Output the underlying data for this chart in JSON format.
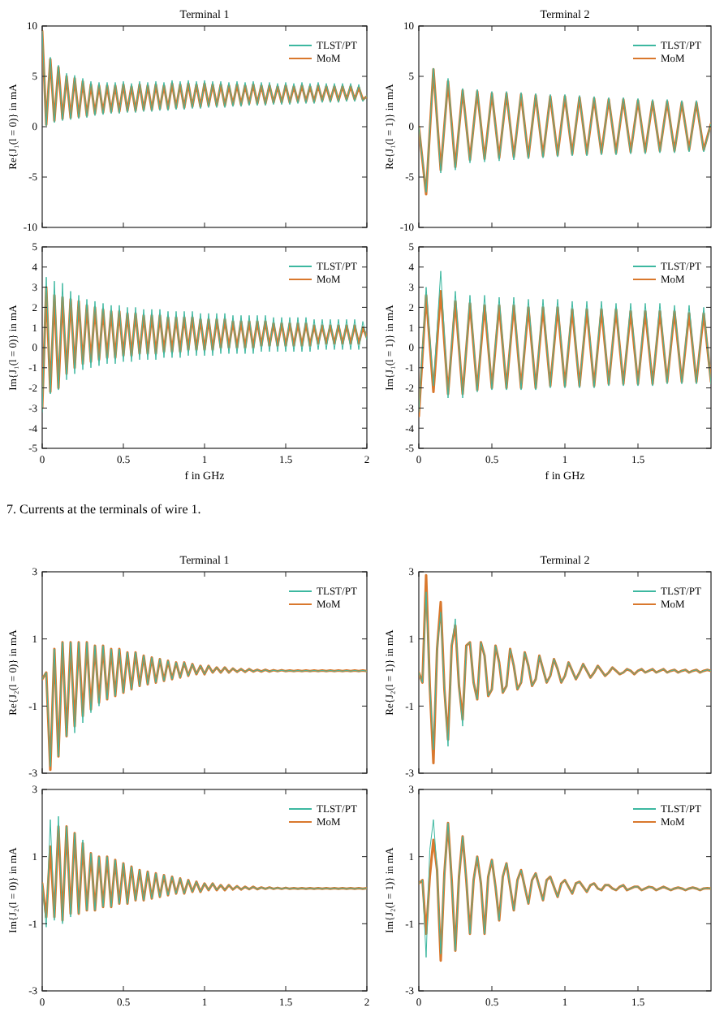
{
  "chart_data": [
    {
      "type": "line",
      "title": "Terminal 1",
      "ylabel": "Re{J₁(l = 0)} in mA",
      "legend": "top right",
      "tick_labels": "y",
      "xlim": [
        0,
        2
      ],
      "xticks": [
        0,
        0.5,
        1,
        1.5,
        2
      ],
      "ylim": [
        -10,
        10
      ],
      "yticks": [
        -10,
        -5,
        0,
        5,
        10
      ],
      "x": [
        0,
        0.025,
        0.05,
        0.075,
        0.1,
        0.125,
        0.15,
        0.175,
        0.2,
        0.225,
        0.25,
        0.275,
        0.3,
        0.325,
        0.35,
        0.375,
        0.4,
        0.425,
        0.45,
        0.475,
        0.5,
        0.525,
        0.55,
        0.575,
        0.6,
        0.625,
        0.65,
        0.675,
        0.7,
        0.725,
        0.75,
        0.775,
        0.8,
        0.825,
        0.85,
        0.875,
        0.9,
        0.925,
        0.95,
        0.975,
        1,
        1.025,
        1.05,
        1.075,
        1.1,
        1.125,
        1.15,
        1.175,
        1.2,
        1.225,
        1.25,
        1.275,
        1.3,
        1.325,
        1.35,
        1.375,
        1.4,
        1.425,
        1.45,
        1.475,
        1.5,
        1.525,
        1.55,
        1.575,
        1.6,
        1.625,
        1.65,
        1.675,
        1.7,
        1.725,
        1.75,
        1.775,
        1.8,
        1.825,
        1.85,
        1.875,
        1.9,
        1.925,
        1.95,
        1.975,
        2
      ],
      "series": [
        {
          "name": "TLST/PT",
          "color": "#3db8a0",
          "values": [
            9.5,
            0.1,
            6.9,
            0.4,
            6.1,
            0.6,
            5.3,
            0.7,
            5.1,
            0.8,
            4.8,
            0.9,
            4.5,
            1.1,
            4.4,
            1.2,
            4.4,
            1.3,
            4.4,
            1.3,
            4.5,
            1.4,
            4.3,
            1.4,
            4.5,
            1.5,
            4.4,
            1.5,
            4.5,
            1.6,
            4.4,
            1.6,
            4.6,
            1.7,
            4.5,
            1.7,
            4.6,
            1.8,
            4.5,
            1.8,
            4.6,
            1.9,
            4.5,
            1.9,
            4.5,
            1.9,
            4.4,
            2.0,
            4.5,
            2.0,
            4.4,
            2.1,
            4.5,
            2.1,
            4.4,
            2.1,
            4.4,
            2.2,
            4.3,
            2.2,
            4.4,
            2.2,
            4.3,
            2.3,
            4.4,
            2.3,
            4.3,
            2.3,
            4.4,
            2.4,
            4.3,
            2.4,
            4.3,
            2.4,
            4.3,
            2.5,
            4.3,
            2.5,
            4.2,
            2.5,
            3.1
          ]
        },
        {
          "name": "MoM",
          "color": "#d9782d",
          "values": [
            9.5,
            0.2,
            6.7,
            0.6,
            5.9,
            0.8,
            5.0,
            0.9,
            4.8,
            1.0,
            4.5,
            1.1,
            4.2,
            1.3,
            4.1,
            1.4,
            4.1,
            1.5,
            4.1,
            1.5,
            4.2,
            1.6,
            4.0,
            1.6,
            4.2,
            1.7,
            4.1,
            1.7,
            4.2,
            1.8,
            4.1,
            1.8,
            4.3,
            1.9,
            4.2,
            1.9,
            4.3,
            2.0,
            4.2,
            2.0,
            4.3,
            2.1,
            4.2,
            2.1,
            4.2,
            2.1,
            4.1,
            2.2,
            4.2,
            2.2,
            4.1,
            2.3,
            4.2,
            2.3,
            4.1,
            2.3,
            4.1,
            2.4,
            4.0,
            2.4,
            4.1,
            2.4,
            4.0,
            2.5,
            4.1,
            2.5,
            4.0,
            2.5,
            4.1,
            2.6,
            4.0,
            2.6,
            4.0,
            2.6,
            4.0,
            2.7,
            4.0,
            2.7,
            3.9,
            2.7,
            3.0
          ]
        }
      ]
    },
    {
      "type": "line",
      "title": "Terminal 2",
      "ylabel": "Re{J₁(l = 1)} in mA",
      "legend": "top right",
      "tick_labels": "y",
      "xlim": [
        0,
        2
      ],
      "xticks": [
        0,
        0.5,
        1,
        1.5
      ],
      "ylim": [
        -10,
        10
      ],
      "yticks": [
        -10,
        -5,
        0,
        5,
        10
      ],
      "x": [
        0,
        0.05,
        0.1,
        0.15,
        0.2,
        0.25,
        0.3,
        0.35,
        0.4,
        0.45,
        0.5,
        0.55,
        0.6,
        0.65,
        0.7,
        0.75,
        0.8,
        0.85,
        0.9,
        0.95,
        1,
        1.05,
        1.1,
        1.15,
        1.2,
        1.25,
        1.3,
        1.35,
        1.4,
        1.45,
        1.5,
        1.55,
        1.6,
        1.65,
        1.7,
        1.75,
        1.8,
        1.85,
        1.9,
        1.95,
        2
      ],
      "series": [
        {
          "name": "TLST/PT",
          "color": "#3db8a0",
          "values": [
            0,
            -6.5,
            5.8,
            -4.6,
            4.8,
            -4.3,
            3.8,
            -3.6,
            3.7,
            -3.5,
            3.5,
            -3.4,
            3.5,
            -3.3,
            3.4,
            -3.2,
            3.3,
            -3.1,
            3.2,
            -3.0,
            3.2,
            -2.9,
            3.1,
            -2.9,
            3.0,
            -2.8,
            2.9,
            -2.8,
            2.9,
            -2.7,
            2.8,
            -2.7,
            2.7,
            -2.6,
            2.7,
            -2.6,
            2.6,
            -2.5,
            2.6,
            -2.5,
            0.3
          ]
        },
        {
          "name": "MoM",
          "color": "#d9782d",
          "values": [
            0,
            -6.7,
            5.7,
            -4.3,
            4.5,
            -4.0,
            3.6,
            -3.3,
            3.5,
            -3.2,
            3.3,
            -3.1,
            3.3,
            -3.0,
            3.2,
            -3.0,
            3.1,
            -2.9,
            3.0,
            -2.8,
            3.0,
            -2.7,
            2.9,
            -2.7,
            2.8,
            -2.6,
            2.7,
            -2.6,
            2.7,
            -2.5,
            2.6,
            -2.5,
            2.5,
            -2.4,
            2.5,
            -2.4,
            2.4,
            -2.3,
            2.4,
            -2.3,
            0.3
          ]
        }
      ]
    },
    {
      "type": "line",
      "xlabel": "f in GHz",
      "ylabel": "Im{J₁(l = 0)} in mA",
      "legend": "top right",
      "xlim": [
        0,
        2
      ],
      "xticks": [
        0,
        0.5,
        1,
        1.5,
        2
      ],
      "ylim": [
        -5,
        5
      ],
      "yticks": [
        -5,
        -4,
        -3,
        -2,
        -1,
        0,
        1,
        2,
        3,
        4,
        5
      ],
      "annotations": [
        "7. Currents at the terminals of wire 1."
      ],
      "x": [
        0,
        0.025,
        0.05,
        0.075,
        0.1,
        0.125,
        0.15,
        0.175,
        0.2,
        0.225,
        0.25,
        0.275,
        0.3,
        0.325,
        0.35,
        0.375,
        0.4,
        0.425,
        0.45,
        0.475,
        0.5,
        0.525,
        0.55,
        0.575,
        0.6,
        0.625,
        0.65,
        0.675,
        0.7,
        0.725,
        0.75,
        0.775,
        0.8,
        0.825,
        0.85,
        0.875,
        0.9,
        0.925,
        0.95,
        0.975,
        1,
        1.025,
        1.05,
        1.075,
        1.1,
        1.125,
        1.15,
        1.175,
        1.2,
        1.225,
        1.25,
        1.275,
        1.3,
        1.325,
        1.35,
        1.375,
        1.4,
        1.425,
        1.45,
        1.475,
        1.5,
        1.525,
        1.55,
        1.575,
        1.6,
        1.625,
        1.65,
        1.675,
        1.7,
        1.725,
        1.75,
        1.775,
        1.8,
        1.825,
        1.85,
        1.875,
        1.9,
        1.925,
        1.95,
        1.975,
        2
      ],
      "series": [
        {
          "name": "TLST/PT",
          "color": "#3db8a0",
          "values": [
            -3.2,
            3.5,
            -2.3,
            3.3,
            -2.1,
            3.2,
            -1.6,
            2.8,
            -1.3,
            2.6,
            -1.1,
            2.4,
            -1.0,
            2.3,
            -0.9,
            2.2,
            -0.8,
            2.1,
            -0.8,
            2.1,
            -0.7,
            2.0,
            -0.7,
            2.0,
            -0.6,
            1.9,
            -0.6,
            1.9,
            -0.6,
            1.9,
            -0.5,
            1.8,
            -0.5,
            1.8,
            -0.5,
            1.8,
            -0.4,
            1.8,
            -0.4,
            1.7,
            -0.4,
            1.7,
            -0.4,
            1.7,
            -0.3,
            1.7,
            -0.3,
            1.6,
            -0.3,
            1.6,
            -0.3,
            1.6,
            -0.3,
            1.6,
            -0.2,
            1.6,
            -0.2,
            1.5,
            -0.2,
            1.5,
            -0.2,
            1.5,
            -0.2,
            1.5,
            -0.2,
            1.5,
            -0.2,
            1.4,
            -0.1,
            1.4,
            -0.1,
            1.4,
            -0.1,
            1.4,
            -0.1,
            1.4,
            -0.1,
            1.4,
            -0.1,
            1.3,
            0.4
          ]
        },
        {
          "name": "MoM",
          "color": "#d9782d",
          "values": [
            -3.0,
            3.0,
            -2.2,
            2.6,
            -2.0,
            2.5,
            -1.3,
            2.4,
            -1.0,
            2.3,
            -0.8,
            2.1,
            -0.7,
            2.0,
            -0.6,
            1.9,
            -0.5,
            1.8,
            -0.5,
            1.8,
            -0.4,
            1.7,
            -0.4,
            1.7,
            -0.3,
            1.6,
            -0.3,
            1.6,
            -0.3,
            1.6,
            -0.2,
            1.5,
            -0.2,
            1.5,
            -0.2,
            1.5,
            -0.1,
            1.5,
            -0.1,
            1.4,
            -0.1,
            1.4,
            -0.1,
            1.4,
            0,
            1.4,
            0,
            1.3,
            0,
            1.3,
            0,
            1.3,
            0,
            1.3,
            0.1,
            1.3,
            0.1,
            1.2,
            0.1,
            1.2,
            0.1,
            1.2,
            0.1,
            1.2,
            0.1,
            1.2,
            0.1,
            1.1,
            0.2,
            1.1,
            0.2,
            1.1,
            0.2,
            1.1,
            0.2,
            1.1,
            0.2,
            1.1,
            0.2,
            1.0,
            0.5
          ]
        }
      ]
    },
    {
      "type": "line",
      "xlabel": "f in GHz",
      "ylabel": "Im{J₁(l = 1)} in mA",
      "legend": "top right",
      "xlim": [
        0,
        2
      ],
      "xticks": [
        0,
        0.5,
        1,
        1.5
      ],
      "ylim": [
        -5,
        5
      ],
      "yticks": [
        -5,
        -4,
        -3,
        -2,
        -1,
        0,
        1,
        2,
        3,
        4,
        5
      ],
      "x": [
        0,
        0.05,
        0.1,
        0.15,
        0.2,
        0.25,
        0.3,
        0.35,
        0.4,
        0.45,
        0.5,
        0.55,
        0.6,
        0.65,
        0.7,
        0.75,
        0.8,
        0.85,
        0.9,
        0.95,
        1,
        1.05,
        1.1,
        1.15,
        1.2,
        1.25,
        1.3,
        1.35,
        1.4,
        1.45,
        1.5,
        1.55,
        1.6,
        1.65,
        1.7,
        1.75,
        1.8,
        1.85,
        1.9,
        1.95,
        2
      ],
      "series": [
        {
          "name": "TLST/PT",
          "color": "#3db8a0",
          "values": [
            -3.2,
            3.0,
            -1.9,
            3.8,
            -2.5,
            2.8,
            -2.5,
            2.6,
            -2.2,
            2.6,
            -2.1,
            2.5,
            -2.1,
            2.5,
            -2.1,
            2.4,
            -2.1,
            2.4,
            -2.0,
            2.4,
            -2.0,
            2.3,
            -2.0,
            2.3,
            -2.0,
            2.3,
            -1.9,
            2.2,
            -1.9,
            2.2,
            -1.9,
            2.2,
            -1.9,
            2.2,
            -1.8,
            2.1,
            -1.8,
            2.1,
            -1.8,
            2.0,
            -1.8
          ]
        },
        {
          "name": "MoM",
          "color": "#d9782d",
          "values": [
            -3.4,
            2.6,
            -2.2,
            2.8,
            -2.3,
            2.3,
            -2.3,
            2.2,
            -2.1,
            2.1,
            -2.0,
            2.1,
            -2.0,
            2.1,
            -2.0,
            2.0,
            -2.0,
            2.0,
            -1.9,
            2.0,
            -1.9,
            1.9,
            -1.9,
            1.9,
            -1.9,
            1.9,
            -1.8,
            1.9,
            -1.8,
            1.8,
            -1.8,
            1.8,
            -1.8,
            1.8,
            -1.7,
            1.8,
            -1.7,
            1.7,
            -1.7,
            1.7,
            -1.7
          ]
        }
      ]
    },
    {
      "type": "line",
      "title": "Terminal 1",
      "ylabel": "Re{J₂(l = 0)} in mA",
      "legend": "top right",
      "tick_labels": "y",
      "xlim": [
        0,
        2
      ],
      "xticks": [
        0,
        0.5,
        1,
        1.5,
        2
      ],
      "ylim": [
        -3,
        3
      ],
      "yticks": [
        -3,
        -1,
        1,
        3
      ],
      "x": [
        0,
        0.025,
        0.05,
        0.075,
        0.1,
        0.125,
        0.15,
        0.175,
        0.2,
        0.225,
        0.25,
        0.275,
        0.3,
        0.325,
        0.35,
        0.375,
        0.4,
        0.425,
        0.45,
        0.475,
        0.5,
        0.525,
        0.55,
        0.575,
        0.6,
        0.625,
        0.65,
        0.675,
        0.7,
        0.725,
        0.75,
        0.775,
        0.8,
        0.825,
        0.85,
        0.875,
        0.9,
        0.925,
        0.95,
        0.975,
        1,
        1.025,
        1.05,
        1.075,
        1.1,
        1.125,
        1.15,
        1.175,
        1.2,
        1.225,
        1.25,
        1.275,
        1.3,
        1.325,
        1.35,
        1.375,
        1.4,
        1.425,
        1.45,
        1.475,
        1.5,
        1.525,
        1.55,
        1.575,
        1.6,
        1.625,
        1.65,
        1.675,
        1.7,
        1.725,
        1.75,
        1.775,
        1.8,
        1.825,
        1.85,
        1.875,
        1.9,
        1.925,
        1.95,
        1.975,
        2
      ],
      "series": [
        {
          "name": "TLST/PT",
          "color": "#3db8a0",
          "values": [
            -0.2,
            0,
            -2.8,
            0.7,
            -2.5,
            0.9,
            -1.9,
            0.9,
            -1.8,
            0.9,
            -1.5,
            0.9,
            -1.2,
            0.8,
            -1.0,
            0.8,
            -0.8,
            0.7,
            -0.7,
            0.7,
            -0.6,
            0.6,
            -0.5,
            0.6,
            -0.4,
            0.5,
            -0.35,
            0.45,
            -0.3,
            0.4,
            -0.25,
            0.35,
            -0.2,
            0.3,
            -0.15,
            0.3,
            -0.1,
            0.25,
            -0.05,
            0.2,
            -0.05,
            0.2,
            0,
            0.15,
            0,
            0.15,
            0,
            0.12,
            0.02,
            0.1,
            0.02,
            0.1,
            0.03,
            0.08,
            0.03,
            0.08,
            0.03,
            0.07,
            0.04,
            0.07,
            0.04,
            0.06,
            0.04,
            0.06,
            0.04,
            0.06,
            0.04,
            0.06,
            0.04,
            0.06,
            0.04,
            0.06,
            0.04,
            0.06,
            0.04,
            0.06,
            0.04,
            0.06,
            0.04,
            0.06,
            0.04
          ]
        },
        {
          "name": "MoM",
          "color": "#d9782d",
          "values": [
            -0.2,
            0,
            -2.9,
            0.7,
            -2.5,
            0.9,
            -1.9,
            0.9,
            -1.6,
            0.9,
            -1.3,
            0.9,
            -1.1,
            0.8,
            -0.9,
            0.8,
            -0.8,
            0.7,
            -0.7,
            0.7,
            -0.6,
            0.6,
            -0.5,
            0.6,
            -0.4,
            0.5,
            -0.35,
            0.45,
            -0.3,
            0.4,
            -0.25,
            0.35,
            -0.2,
            0.3,
            -0.15,
            0.3,
            -0.1,
            0.25,
            -0.05,
            0.2,
            -0.05,
            0.2,
            0,
            0.15,
            0,
            0.15,
            0,
            0.12,
            0.02,
            0.1,
            0.02,
            0.1,
            0.03,
            0.08,
            0.03,
            0.08,
            0.03,
            0.07,
            0.04,
            0.07,
            0.04,
            0.06,
            0.04,
            0.06,
            0.04,
            0.06,
            0.04,
            0.06,
            0.04,
            0.06,
            0.04,
            0.06,
            0.04,
            0.06,
            0.04,
            0.06,
            0.04,
            0.06,
            0.04,
            0.06,
            0.04
          ]
        }
      ]
    },
    {
      "type": "line",
      "title": "Terminal 2",
      "ylabel": "Re{J₂(l = 1)} in mA",
      "legend": "top right",
      "tick_labels": "y",
      "xlim": [
        0,
        2
      ],
      "xticks": [
        0,
        0.5,
        1,
        1.5
      ],
      "ylim": [
        -3,
        3
      ],
      "yticks": [
        -3,
        -1,
        1,
        3
      ],
      "x": [
        0,
        0.025,
        0.05,
        0.075,
        0.1,
        0.125,
        0.15,
        0.175,
        0.2,
        0.225,
        0.25,
        0.275,
        0.3,
        0.325,
        0.35,
        0.375,
        0.4,
        0.425,
        0.45,
        0.475,
        0.5,
        0.525,
        0.55,
        0.575,
        0.6,
        0.625,
        0.65,
        0.675,
        0.7,
        0.725,
        0.75,
        0.775,
        0.8,
        0.825,
        0.85,
        0.875,
        0.9,
        0.925,
        0.95,
        0.975,
        1,
        1.025,
        1.05,
        1.075,
        1.1,
        1.125,
        1.15,
        1.175,
        1.2,
        1.225,
        1.25,
        1.275,
        1.3,
        1.325,
        1.35,
        1.375,
        1.4,
        1.425,
        1.45,
        1.475,
        1.5,
        1.525,
        1.55,
        1.575,
        1.6,
        1.625,
        1.65,
        1.675,
        1.7,
        1.725,
        1.75,
        1.775,
        1.8,
        1.825,
        1.85,
        1.875,
        1.9,
        1.925,
        1.95,
        1.975,
        2
      ],
      "series": [
        {
          "name": "TLST/PT",
          "color": "#3db8a0",
          "values": [
            0,
            -0.3,
            2.4,
            -0.4,
            -2.3,
            0.7,
            1.8,
            -0.5,
            -2.2,
            0.8,
            1.6,
            -0.4,
            -1.6,
            0.8,
            0.9,
            -0.3,
            -0.8,
            0.9,
            0.5,
            -0.7,
            -0.5,
            0.8,
            0.3,
            -0.6,
            -0.4,
            0.7,
            0.2,
            -0.5,
            -0.3,
            0.6,
            0.2,
            -0.4,
            -0.2,
            0.5,
            0.1,
            -0.3,
            -0.1,
            0.4,
            0.1,
            -0.3,
            -0.1,
            0.3,
            0.05,
            -0.2,
            0,
            0.25,
            0.05,
            -0.15,
            0,
            0.2,
            0.05,
            -0.1,
            0,
            0.15,
            0.05,
            -0.05,
            0,
            0.1,
            0.05,
            -0.05,
            0.05,
            0.1,
            0,
            0.05,
            0.1,
            0,
            0.05,
            0.1,
            0,
            0.05,
            0.08,
            0,
            0.05,
            0.08,
            0,
            0.05,
            0.08,
            0,
            0.05,
            0.08,
            0.05
          ]
        },
        {
          "name": "MoM",
          "color": "#d9782d",
          "values": [
            0,
            -0.3,
            2.9,
            -0.4,
            -2.7,
            0.7,
            2.1,
            -0.5,
            -2.0,
            0.8,
            1.4,
            -0.4,
            -1.4,
            0.8,
            0.9,
            -0.3,
            -0.8,
            0.9,
            0.5,
            -0.7,
            -0.5,
            0.8,
            0.3,
            -0.6,
            -0.4,
            0.7,
            0.2,
            -0.5,
            -0.3,
            0.6,
            0.2,
            -0.4,
            -0.2,
            0.5,
            0.1,
            -0.3,
            -0.1,
            0.4,
            0.1,
            -0.3,
            -0.1,
            0.3,
            0.05,
            -0.2,
            0,
            0.25,
            0.05,
            -0.15,
            0,
            0.2,
            0.05,
            -0.1,
            0,
            0.15,
            0.05,
            -0.05,
            0,
            0.1,
            0.05,
            -0.05,
            0.05,
            0.1,
            0,
            0.05,
            0.1,
            0,
            0.05,
            0.1,
            0,
            0.05,
            0.08,
            0,
            0.05,
            0.08,
            0,
            0.05,
            0.08,
            0,
            0.05,
            0.08,
            0.05
          ]
        }
      ]
    },
    {
      "type": "line",
      "ylabel": "Im{J₂(l = 0)} in mA",
      "legend": "top right",
      "xlim": [
        0,
        2
      ],
      "xticks": [
        0,
        0.5,
        1,
        1.5,
        2
      ],
      "ylim": [
        -3,
        3
      ],
      "yticks": [
        -3,
        -1,
        1,
        3
      ],
      "x": [
        0,
        0.025,
        0.05,
        0.075,
        0.1,
        0.125,
        0.15,
        0.175,
        0.2,
        0.225,
        0.25,
        0.275,
        0.3,
        0.325,
        0.35,
        0.375,
        0.4,
        0.425,
        0.45,
        0.475,
        0.5,
        0.525,
        0.55,
        0.575,
        0.6,
        0.625,
        0.65,
        0.675,
        0.7,
        0.725,
        0.75,
        0.775,
        0.8,
        0.825,
        0.85,
        0.875,
        0.9,
        0.925,
        0.95,
        0.975,
        1,
        1.025,
        1.05,
        1.075,
        1.1,
        1.125,
        1.15,
        1.175,
        1.2,
        1.225,
        1.25,
        1.275,
        1.3,
        1.325,
        1.35,
        1.375,
        1.4,
        1.425,
        1.45,
        1.475,
        1.5,
        1.525,
        1.55,
        1.575,
        1.6,
        1.625,
        1.65,
        1.675,
        1.7,
        1.725,
        1.75,
        1.775,
        1.8,
        1.825,
        1.85,
        1.875,
        1.9,
        1.925,
        1.95,
        1.975,
        2
      ],
      "series": [
        {
          "name": "TLST/PT",
          "color": "#3db8a0",
          "values": [
            0.2,
            -1.1,
            2.1,
            -0.9,
            2.2,
            -1.0,
            1.9,
            -0.8,
            1.7,
            -0.7,
            1.5,
            -0.6,
            1.1,
            -0.6,
            1.0,
            -0.5,
            1.0,
            -0.5,
            0.9,
            -0.4,
            0.8,
            -0.4,
            0.7,
            -0.3,
            0.6,
            -0.3,
            0.55,
            -0.25,
            0.5,
            -0.2,
            0.45,
            -0.15,
            0.4,
            -0.1,
            0.35,
            -0.1,
            0.3,
            -0.05,
            0.25,
            -0.05,
            0.2,
            0,
            0.2,
            0,
            0.15,
            0,
            0.15,
            0.02,
            0.12,
            0.02,
            0.1,
            0.03,
            0.1,
            0.03,
            0.08,
            0.04,
            0.08,
            0.04,
            0.07,
            0.04,
            0.07,
            0.04,
            0.06,
            0.04,
            0.06,
            0.04,
            0.06,
            0.04,
            0.06,
            0.04,
            0.06,
            0.04,
            0.06,
            0.04,
            0.06,
            0.04,
            0.06,
            0.04,
            0.06,
            0.04,
            0.06
          ]
        },
        {
          "name": "MoM",
          "color": "#d9782d",
          "values": [
            0.2,
            -0.8,
            1.3,
            -0.8,
            1.9,
            -0.9,
            1.9,
            -0.7,
            1.7,
            -0.7,
            1.4,
            -0.6,
            1.1,
            -0.6,
            1.0,
            -0.5,
            1.0,
            -0.5,
            0.9,
            -0.4,
            0.8,
            -0.4,
            0.7,
            -0.3,
            0.6,
            -0.3,
            0.55,
            -0.25,
            0.5,
            -0.2,
            0.45,
            -0.15,
            0.4,
            -0.1,
            0.35,
            -0.1,
            0.3,
            -0.05,
            0.25,
            -0.05,
            0.2,
            0,
            0.2,
            0,
            0.15,
            0,
            0.15,
            0.02,
            0.12,
            0.02,
            0.1,
            0.03,
            0.1,
            0.03,
            0.08,
            0.04,
            0.08,
            0.04,
            0.07,
            0.04,
            0.07,
            0.04,
            0.06,
            0.04,
            0.06,
            0.04,
            0.06,
            0.04,
            0.06,
            0.04,
            0.06,
            0.04,
            0.06,
            0.04,
            0.06,
            0.04,
            0.06,
            0.04,
            0.06,
            0.04,
            0.06
          ]
        }
      ]
    },
    {
      "type": "line",
      "ylabel": "Im{J₂(l = 1)} in mA",
      "legend": "top right",
      "xlim": [
        0,
        2
      ],
      "xticks": [
        0,
        0.5,
        1,
        1.5
      ],
      "ylim": [
        -3,
        3
      ],
      "yticks": [
        -3,
        -1,
        1,
        3
      ],
      "x": [
        0,
        0.025,
        0.05,
        0.075,
        0.1,
        0.125,
        0.15,
        0.175,
        0.2,
        0.225,
        0.25,
        0.275,
        0.3,
        0.325,
        0.35,
        0.375,
        0.4,
        0.425,
        0.45,
        0.475,
        0.5,
        0.525,
        0.55,
        0.575,
        0.6,
        0.625,
        0.65,
        0.675,
        0.7,
        0.725,
        0.75,
        0.775,
        0.8,
        0.825,
        0.85,
        0.875,
        0.9,
        0.925,
        0.95,
        0.975,
        1,
        1.025,
        1.05,
        1.075,
        1.1,
        1.125,
        1.15,
        1.175,
        1.2,
        1.225,
        1.25,
        1.275,
        1.3,
        1.325,
        1.35,
        1.375,
        1.4,
        1.425,
        1.45,
        1.475,
        1.5,
        1.525,
        1.55,
        1.575,
        1.6,
        1.625,
        1.65,
        1.675,
        1.7,
        1.725,
        1.75,
        1.775,
        1.8,
        1.825,
        1.85,
        1.875,
        1.9,
        1.925,
        1.95,
        1.975,
        2
      ],
      "series": [
        {
          "name": "TLST/PT",
          "color": "#3db8a0",
          "values": [
            0.2,
            0.3,
            -2.0,
            1.2,
            2.1,
            0.6,
            -1.9,
            0.5,
            2.0,
            0.3,
            -1.8,
            0.4,
            1.6,
            0.3,
            -1.3,
            0.3,
            1.0,
            0.2,
            -1.3,
            0.4,
            0.9,
            0.1,
            -0.9,
            0.4,
            0.8,
            0.1,
            -0.6,
            0.3,
            0.6,
            0.1,
            -0.4,
            0.3,
            0.5,
            0.1,
            -0.3,
            0.3,
            0.4,
            0.1,
            -0.2,
            0.2,
            0.3,
            0.1,
            -0.1,
            0.2,
            0.25,
            0.1,
            -0.05,
            0.15,
            0.2,
            0.05,
            0,
            0.15,
            0.15,
            0.05,
            0,
            0.1,
            0.15,
            0,
            0.05,
            0.1,
            0.1,
            0,
            0.05,
            0.1,
            0.08,
            0,
            0.05,
            0.1,
            0.05,
            0,
            0.05,
            0.08,
            0.05,
            0,
            0.05,
            0.08,
            0.05,
            0,
            0.05,
            0.06,
            0.05
          ]
        },
        {
          "name": "MoM",
          "color": "#d9782d",
          "values": [
            0.2,
            0.3,
            -1.3,
            0.4,
            1.5,
            0.6,
            -2.1,
            0.5,
            2.0,
            0.3,
            -1.8,
            0.4,
            1.6,
            0.3,
            -1.3,
            0.3,
            1.0,
            0.2,
            -1.3,
            0.4,
            0.9,
            0.1,
            -0.9,
            0.4,
            0.8,
            0.1,
            -0.6,
            0.3,
            0.6,
            0.1,
            -0.4,
            0.3,
            0.5,
            0.1,
            -0.3,
            0.3,
            0.4,
            0.1,
            -0.2,
            0.2,
            0.3,
            0.1,
            -0.1,
            0.2,
            0.25,
            0.1,
            -0.05,
            0.15,
            0.2,
            0.05,
            0,
            0.15,
            0.15,
            0.05,
            0,
            0.1,
            0.15,
            0,
            0.05,
            0.1,
            0.1,
            0,
            0.05,
            0.1,
            0.08,
            0,
            0.05,
            0.1,
            0.05,
            0,
            0.05,
            0.08,
            0.05,
            0,
            0.05,
            0.08,
            0.05,
            0,
            0.05,
            0.06,
            0.05
          ]
        }
      ]
    }
  ]
}
